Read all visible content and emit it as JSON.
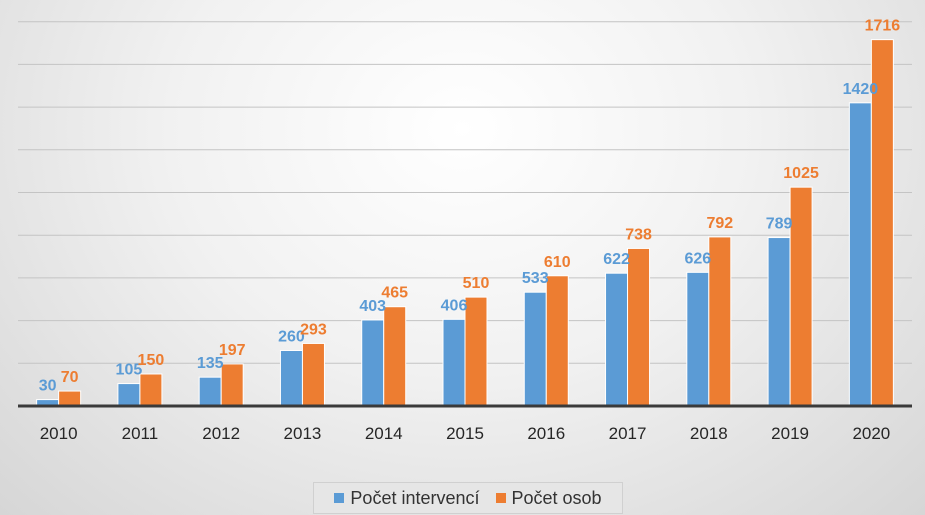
{
  "chart_data": {
    "type": "bar",
    "categories": [
      "2010",
      "2011",
      "2012",
      "2013",
      "2014",
      "2015",
      "2016",
      "2017",
      "2018",
      "2019",
      "2020"
    ],
    "series": [
      {
        "name": "Počet intervencí",
        "values": [
          30,
          105,
          135,
          260,
          403,
          406,
          533,
          622,
          626,
          789,
          1420
        ],
        "color": "#5B9BD5",
        "label_color": "#5B9BD5"
      },
      {
        "name": "Počet osob",
        "values": [
          70,
          150,
          197,
          293,
          465,
          510,
          610,
          738,
          792,
          1025,
          1716
        ],
        "color": "#ED7D31",
        "label_color": "#ED7D31"
      }
    ],
    "ylim": [
      0,
      2000
    ],
    "grid": true,
    "legend_position": "bottom",
    "data_labels": true
  }
}
